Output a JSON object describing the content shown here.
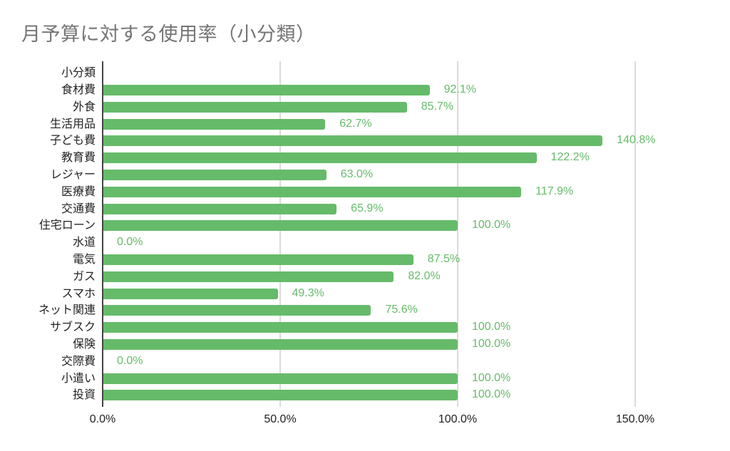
{
  "chart_data": {
    "type": "bar",
    "orientation": "horizontal",
    "title": "月予算に対する使用率（小分類）",
    "header_label": "小分類",
    "categories": [
      "食材費",
      "外食",
      "生活用品",
      "子ども費",
      "教育費",
      "レジャー",
      "医療費",
      "交通費",
      "住宅ローン",
      "水道",
      "電気",
      "ガス",
      "スマホ",
      "ネット関連",
      "サブスク",
      "保険",
      "交際費",
      "小遣い",
      "投資"
    ],
    "values": [
      92.1,
      85.7,
      62.7,
      140.8,
      122.2,
      63.0,
      117.9,
      65.9,
      100.0,
      0.0,
      87.5,
      82.0,
      49.3,
      75.6,
      100.0,
      100.0,
      0.0,
      100.0,
      100.0
    ],
    "value_labels": [
      "92.1%",
      "85.7%",
      "62.7%",
      "140.8%",
      "122.2%",
      "63.0%",
      "117.9%",
      "65.9%",
      "100.0%",
      "0.0%",
      "87.5%",
      "82.0%",
      "49.3%",
      "75.6%",
      "100.0%",
      "100.0%",
      "0.0%",
      "100.0%",
      "100.0%"
    ],
    "xlabel": "",
    "ylabel": "小分類",
    "xlim": [
      0,
      150
    ],
    "x_ticks": [
      "0.0%",
      "50.0%",
      "100.0%",
      "150.0%"
    ],
    "x_tick_values": [
      0,
      50,
      100,
      150
    ],
    "grid": true,
    "legend": "none",
    "bar_color": "#66bb6a",
    "label_color": "#66bb6a"
  }
}
